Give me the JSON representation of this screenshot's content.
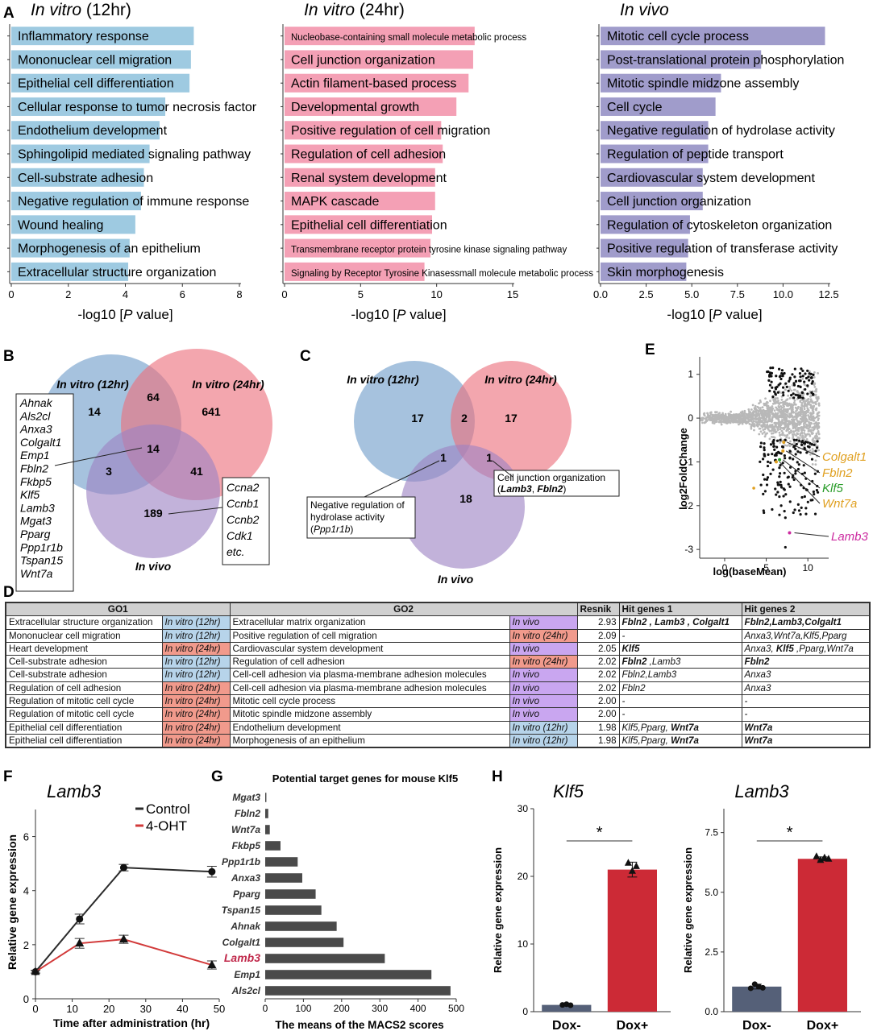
{
  "panel_labels": {
    "A": "A",
    "B": "B",
    "C": "C",
    "D": "D",
    "E": "E",
    "F": "F",
    "G": "G",
    "H": "H"
  },
  "panelA": {
    "xlabel_prefix": "-log10 [",
    "xlabel_italic": "P",
    "xlabel_suffix": " value]",
    "colors": {
      "vitro12": "#9ecae1",
      "vitro24": "#f4a0b5",
      "vivo": "#a09ccb"
    },
    "charts": [
      {
        "id": "vitro12",
        "title_italic": "In vitro",
        "title_rest": " (12hr)",
        "xlim": [
          0,
          8
        ],
        "ticks": [
          "0",
          "2",
          "4",
          "6",
          "8"
        ],
        "tick_values": [
          0,
          2,
          4,
          6,
          8
        ],
        "terms": [
          {
            "label": "Inflammatory response",
            "value": 6.4
          },
          {
            "label": "Mononuclear cell migration",
            "value": 6.3
          },
          {
            "label": "Epithelial cell differentiation",
            "value": 6.25
          },
          {
            "label": "Cellular response to tumor necrosis factor",
            "value": 5.4
          },
          {
            "label": "Endothelium development",
            "value": 5.2
          },
          {
            "label": "Sphingolipid mediated signaling pathway",
            "value": 4.85
          },
          {
            "label": "Cell-substrate adhesion",
            "value": 4.65
          },
          {
            "label": "Negative regulation of immune response",
            "value": 4.55
          },
          {
            "label": "Wound healing",
            "value": 4.35
          },
          {
            "label": "Morphogenesis of an epithelium",
            "value": 4.15
          },
          {
            "label": "Extracellular structure organization",
            "value": 4.1
          }
        ]
      },
      {
        "id": "vitro24",
        "title_italic": "In vitro",
        "title_rest": " (24hr)",
        "xlim": [
          0,
          15
        ],
        "ticks": [
          "0",
          "5",
          "10",
          "15"
        ],
        "tick_values": [
          0,
          5,
          10,
          15
        ],
        "terms": [
          {
            "label": "Nucleobase-containing small molecule metabolic process",
            "value": 12.5,
            "small": true
          },
          {
            "label": "Cell junction organization",
            "value": 12.4
          },
          {
            "label": "Actin filament-based process",
            "value": 12.1
          },
          {
            "label": "Developmental growth",
            "value": 11.3
          },
          {
            "label": "Positive regulation of cell migration",
            "value": 10.3
          },
          {
            "label": "Regulation of cell adhesion",
            "value": 10.4
          },
          {
            "label": "Renal system development",
            "value": 9.9
          },
          {
            "label": "MAPK cascade",
            "value": 9.9
          },
          {
            "label": "Epithelial cell differentiation",
            "value": 9.7
          },
          {
            "label": "Transmembrane receptor protein tyrosine kinase signaling pathway",
            "value": 9.6,
            "small": true
          },
          {
            "label": "Signaling by Receptor Tyrosine Kinasessmall molecule metabolic process",
            "value": 9.2,
            "small": true
          }
        ]
      },
      {
        "id": "vivo",
        "title_italic": "In vivo",
        "title_rest": "",
        "xlim": [
          0,
          12.5
        ],
        "ticks": [
          "0.0",
          "2.5",
          "5.0",
          "7.5",
          "10.0",
          "12.5"
        ],
        "tick_values": [
          0,
          2.5,
          5,
          7.5,
          10,
          12.5
        ],
        "terms": [
          {
            "label": "Mitotic cell cycle process",
            "value": 12.3
          },
          {
            "label": "Post-translational protein phosphorylation",
            "value": 8.8
          },
          {
            "label": "Mitotic spindle midzone assembly",
            "value": 6.6
          },
          {
            "label": "Cell cycle",
            "value": 6.3
          },
          {
            "label": "Negative regulation of hydrolase activity",
            "value": 5.9
          },
          {
            "label": "Regulation of peptide transport",
            "value": 5.9
          },
          {
            "label": "Cardiovascular system development",
            "value": 5.6
          },
          {
            "label": "Cell junction organization",
            "value": 5.6
          },
          {
            "label": "Regulation of cytoskeleton organization",
            "value": 4.9
          },
          {
            "label": "Positive regulation of transferase activity",
            "value": 4.8
          },
          {
            "label": "Skin morphogenesis",
            "value": 4.7
          }
        ]
      }
    ]
  },
  "panelB": {
    "label_12": "In vitro (12hr)",
    "label_24": "In vitro (24hr)",
    "label_vivo": "In vivo",
    "counts": {
      "only12": "14",
      "both12_24": "64",
      "only24": "641",
      "all": "14",
      "vivo12": "3",
      "vivo24": "41",
      "onlyvivo": "189"
    },
    "genes_left": [
      "Ahnak",
      "Als2cl",
      "Anxa3",
      "Colgalt1",
      "Emp1",
      "Fbln2",
      "Fkbp5",
      "Klf5",
      "Lamb3",
      "Mgat3",
      "Pparg",
      "Ppp1r1b",
      "Tspan15",
      "Wnt7a"
    ],
    "genes_right": [
      "Ccna2",
      "Ccnb1",
      "Ccnb2",
      "Cdk1",
      "etc."
    ]
  },
  "panelC": {
    "label_12": "In vitro (12hr)",
    "label_24": "In vitro (24hr)",
    "label_vivo": "In vivo",
    "counts": {
      "only12": "17",
      "both": "2",
      "only24": "17",
      "vivo12": "1",
      "vivo24": "1",
      "onlyvivo": "18"
    },
    "box_left_l1": "Negative regulation of",
    "box_left_l2": "hydrolase activity",
    "box_left_gene": "Ppp1r1b",
    "box_right_l1": "Cell junction organization",
    "box_right_g1": "Lamb3",
    "box_right_g2": "Fbln2"
  },
  "panelE": {
    "ylabel": "log2FoldChange",
    "xlabel": "log(baseMean)",
    "yticks": [
      "1",
      "0",
      "-1",
      "-2",
      "-3"
    ],
    "ytick_values": [
      1,
      0,
      -1,
      -2,
      -3
    ],
    "xticks": [
      "0",
      "5",
      "10"
    ],
    "xtick_values": [
      0,
      5,
      10
    ],
    "xlim": [
      -3,
      12.5
    ],
    "ylim": [
      -3.2,
      1.4
    ],
    "labels": [
      {
        "text": "Colgalt1",
        "color": "#e0a020",
        "x": 7.1,
        "y": -0.55
      },
      {
        "text": "Fbln2",
        "color": "#e0a020",
        "x": 7.0,
        "y": -0.75
      },
      {
        "text": "Klf5",
        "color": "#2a9d2a",
        "x": 6.6,
        "y": -0.95
      },
      {
        "text": "Wnt7a",
        "color": "#e0a020",
        "x": 6.2,
        "y": -1.0
      },
      {
        "text": "Lamb3",
        "color": "#cc2aa0",
        "x": 8.0,
        "y": -2.62
      }
    ]
  },
  "panelD": {
    "headers": {
      "go1": "GO1",
      "go2": "GO2",
      "resnik": "Resnik",
      "hit1": "Hit genes 1",
      "hit2": "Hit genes 2"
    },
    "rows": [
      {
        "go1": "Extracellular structure organization",
        "c1": "In vitro (12hr)",
        "k1": "blue",
        "go2": "Extracellular matrix organization",
        "c2": "In vivo",
        "k2": "purple",
        "resnik": "2.93",
        "hit1": [
          [
            "Fbln2",
            1
          ],
          [
            " , ",
            1
          ],
          [
            "Lamb3",
            1
          ],
          [
            " , ",
            1
          ],
          [
            "Colgalt1",
            1
          ]
        ],
        "hit2": [
          [
            "Fbln2,Lamb3,Colgalt1",
            1
          ]
        ]
      },
      {
        "go1": "Mononuclear cell migration",
        "c1": "In vitro (12hr)",
        "k1": "blue",
        "go2": "Positive regulation of cell migration",
        "c2": "In vitro (24hr)",
        "k2": "red",
        "resnik": "2.09",
        "hit1": [
          [
            "-",
            0
          ]
        ],
        "hit2": [
          [
            "Anxa3,Wnt7a,Klf5,Pparg",
            0
          ]
        ]
      },
      {
        "go1": "Heart development",
        "c1": "In vitro (24hr)",
        "k1": "red",
        "go2": "Cardiovascular system development",
        "c2": "In vivo",
        "k2": "purple",
        "resnik": "2.05",
        "hit1": [
          [
            "Klf5",
            1
          ]
        ],
        "hit2": [
          [
            "Anxa3, ",
            0
          ],
          [
            "Klf5",
            1
          ],
          [
            " ,Pparg,Wnt7a",
            0
          ]
        ]
      },
      {
        "go1": "Cell-substrate adhesion",
        "c1": "In vitro (12hr)",
        "k1": "blue",
        "go2": "Regulation of cell adhesion",
        "c2": "In vitro (24hr)",
        "k2": "red",
        "resnik": "2.02",
        "hit1": [
          [
            "Fbln2",
            1
          ],
          [
            " ,Lamb3",
            0
          ]
        ],
        "hit2": [
          [
            "Fbln2",
            1
          ]
        ]
      },
      {
        "go1": "Cell-substrate adhesion",
        "c1": "In vitro (12hr)",
        "k1": "blue",
        "go2": "Cell-cell adhesion via plasma-membrane adhesion molecules",
        "c2": "In vivo",
        "k2": "purple",
        "resnik": "2.02",
        "hit1": [
          [
            "Fbln2,Lamb3",
            0
          ]
        ],
        "hit2": [
          [
            "Anxa3",
            0
          ]
        ]
      },
      {
        "go1": "Regulation of cell adhesion",
        "c1": "In vitro (24hr)",
        "k1": "red",
        "go2": "Cell-cell adhesion via plasma-membrane adhesion molecules",
        "c2": "In vivo",
        "k2": "purple",
        "resnik": "2.02",
        "hit1": [
          [
            "Fbln2",
            0
          ]
        ],
        "hit2": [
          [
            "Anxa3",
            0
          ]
        ]
      },
      {
        "go1": "Regulation of mitotic cell cycle",
        "c1": "In vitro (24hr)",
        "k1": "red",
        "go2": "Mitotic cell cycle process",
        "c2": "In vivo",
        "k2": "purple",
        "resnik": "2.00",
        "hit1": [
          [
            "-",
            0
          ]
        ],
        "hit2": [
          [
            "-",
            0
          ]
        ]
      },
      {
        "go1": "Regulation of mitotic cell cycle",
        "c1": "In vitro (24hr)",
        "k1": "red",
        "go2": "Mitotic spindle midzone assembly",
        "c2": "In vivo",
        "k2": "purple",
        "resnik": "2.00",
        "hit1": [
          [
            "-",
            0
          ]
        ],
        "hit2": [
          [
            "-",
            0
          ]
        ]
      },
      {
        "go1": "Epithelial cell differentiation",
        "c1": "In vitro (24hr)",
        "k1": "red",
        "go2": "Endothelium development",
        "c2": "In vitro (12hr)",
        "k2": "blue",
        "resnik": "1.98",
        "hit1": [
          [
            "Klf5,Pparg, ",
            0
          ],
          [
            "Wnt7a",
            1
          ]
        ],
        "hit2": [
          [
            "Wnt7a",
            1
          ]
        ]
      },
      {
        "go1": "Epithelial cell differentiation",
        "c1": "In vitro (24hr)",
        "k1": "red",
        "go2": "Morphogenesis of an epithelium",
        "c2": "In vitro (12hr)",
        "k2": "blue",
        "resnik": "1.98",
        "hit1": [
          [
            "Klf5,Pparg, ",
            0
          ],
          [
            "Wnt7a",
            1
          ]
        ],
        "hit2": [
          [
            "Wnt7a",
            1
          ]
        ]
      }
    ]
  },
  "chart_data": [
    {
      "type": "line",
      "title": "Lamb3",
      "xlabel": "Time after administration (hr)",
      "ylabel": "Relative gene expression",
      "x": [
        0,
        12,
        24,
        48
      ],
      "xlim": [
        0,
        50
      ],
      "ylim": [
        0,
        7
      ],
      "xticks": [
        "0",
        "10",
        "20",
        "30",
        "40",
        "50"
      ],
      "xtick_values": [
        0,
        10,
        20,
        30,
        40,
        50
      ],
      "yticks": [
        "0",
        "2",
        "4",
        "6"
      ],
      "ytick_values": [
        0,
        2,
        4,
        6
      ],
      "series": [
        {
          "name": "Control",
          "color": "#2b2b2b",
          "marker": "circle",
          "values": [
            1.0,
            2.95,
            4.85,
            4.7
          ],
          "err": [
            0.05,
            0.18,
            0.12,
            0.2
          ]
        },
        {
          "name": "4-OHT",
          "color": "#d23a3a",
          "marker": "triangle",
          "values": [
            1.0,
            2.05,
            2.2,
            1.25
          ],
          "err": [
            0.05,
            0.18,
            0.15,
            0.15
          ]
        }
      ]
    },
    {
      "type": "bar",
      "title": "Potential target genes for mouse Klf5",
      "xlabel": "The means of the MACS2 scores",
      "orientation": "horizontal",
      "xlim": [
        0,
        500
      ],
      "xticks": [
        "0",
        "100",
        "200",
        "300",
        "400",
        "500"
      ],
      "xtick_values": [
        0,
        100,
        200,
        300,
        400,
        500
      ],
      "categories": [
        "Mgat3",
        "Fbln2",
        "Wnt7a",
        "Fkbp5",
        "Ppp1r1b",
        "Anxa3",
        "Pparg",
        "Tspan15",
        "Ahnak",
        "Colgalt1",
        "Lamb3",
        "Emp1",
        "Als2cl"
      ],
      "values": [
        3,
        8,
        12,
        40,
        85,
        97,
        132,
        147,
        187,
        205,
        313,
        435,
        485
      ],
      "highlight": "Lamb3"
    },
    {
      "type": "bar",
      "title": "Klf5",
      "ylabel": "Relative gene expression",
      "categories": [
        "Dox-",
        "Dox+"
      ],
      "values": [
        1.0,
        21.0
      ],
      "err": [
        0.1,
        1.1
      ],
      "points": [
        [
          1.0,
          1.1,
          0.95
        ],
        [
          22.0,
          20.8,
          21.5
        ]
      ],
      "ylim": [
        0,
        30
      ],
      "yticks": [
        "0",
        "10",
        "20",
        "30"
      ],
      "ytick_values": [
        0,
        10,
        20,
        30
      ],
      "colors": [
        "#556078",
        "#cc2a36"
      ],
      "significance": "*"
    },
    {
      "type": "bar",
      "title": "Lamb3",
      "ylabel": "Relative gene expression",
      "categories": [
        "Dox-",
        "Dox+"
      ],
      "values": [
        1.05,
        6.4
      ],
      "err": [
        0.1,
        0.08
      ],
      "points": [
        [
          0.98,
          1.15,
          1.05,
          1.0
        ],
        [
          6.5,
          6.35,
          6.45,
          6.4
        ]
      ],
      "ylim": [
        0,
        8.5
      ],
      "yticks": [
        "0.0",
        "2.5",
        "5.0",
        "7.5"
      ],
      "ytick_values": [
        0,
        2.5,
        5,
        7.5
      ],
      "colors": [
        "#556078",
        "#cc2a36"
      ],
      "significance": "*"
    }
  ]
}
